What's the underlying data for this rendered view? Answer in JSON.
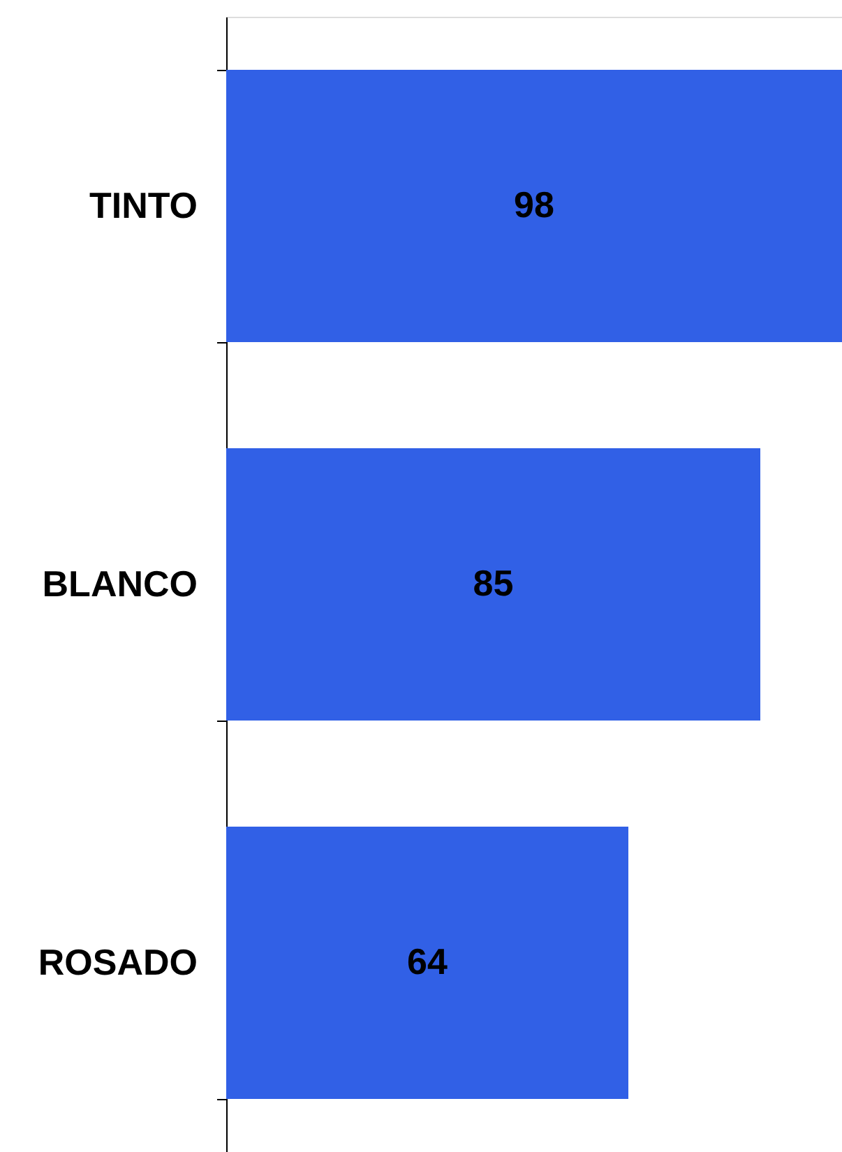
{
  "chart_data": {
    "type": "bar",
    "orientation": "horizontal",
    "categories": [
      "TINTO",
      "BLANCO",
      "ROSADO"
    ],
    "values": [
      98,
      85,
      64
    ],
    "color": "#3160e6",
    "data_labels": true
  }
}
